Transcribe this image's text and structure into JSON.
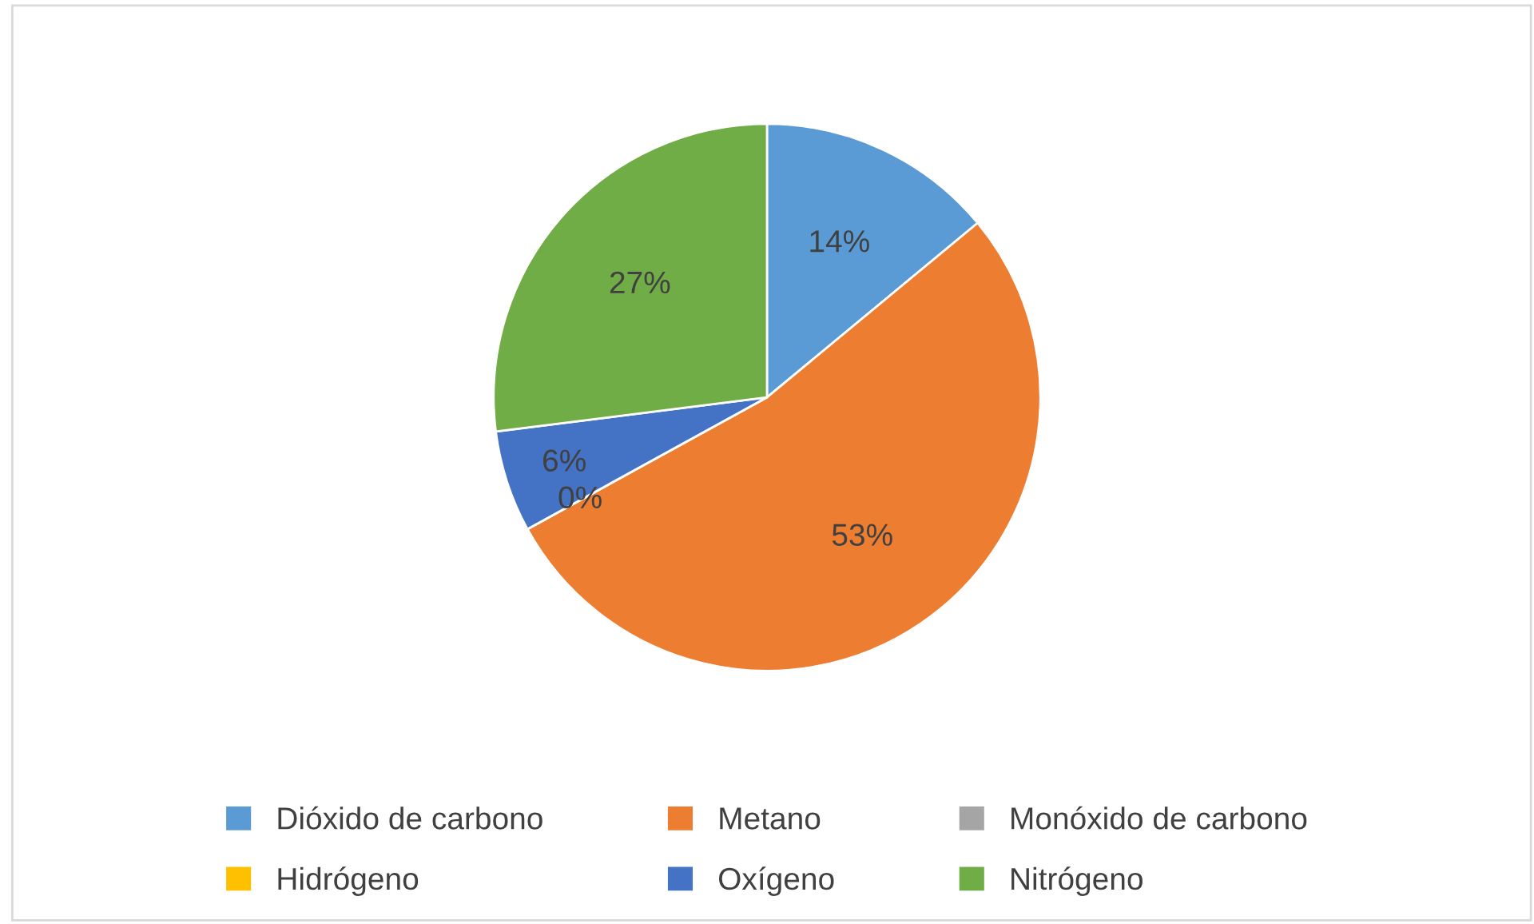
{
  "chart_data": {
    "type": "pie",
    "categories": [
      "Dióxido de carbono",
      "Metano",
      "Monóxido de carbono",
      "Hidrógeno",
      "Oxígeno",
      "Nitrógeno"
    ],
    "values": [
      14,
      53,
      0,
      0,
      6,
      27
    ],
    "colors": [
      "#5b9bd5",
      "#ed7d31",
      "#a5a5a5",
      "#ffc000",
      "#4472c4",
      "#70ad47"
    ],
    "value_labels": [
      "14%",
      "53%",
      "0%",
      null,
      "6%",
      "27%"
    ],
    "legend": "bottom"
  }
}
